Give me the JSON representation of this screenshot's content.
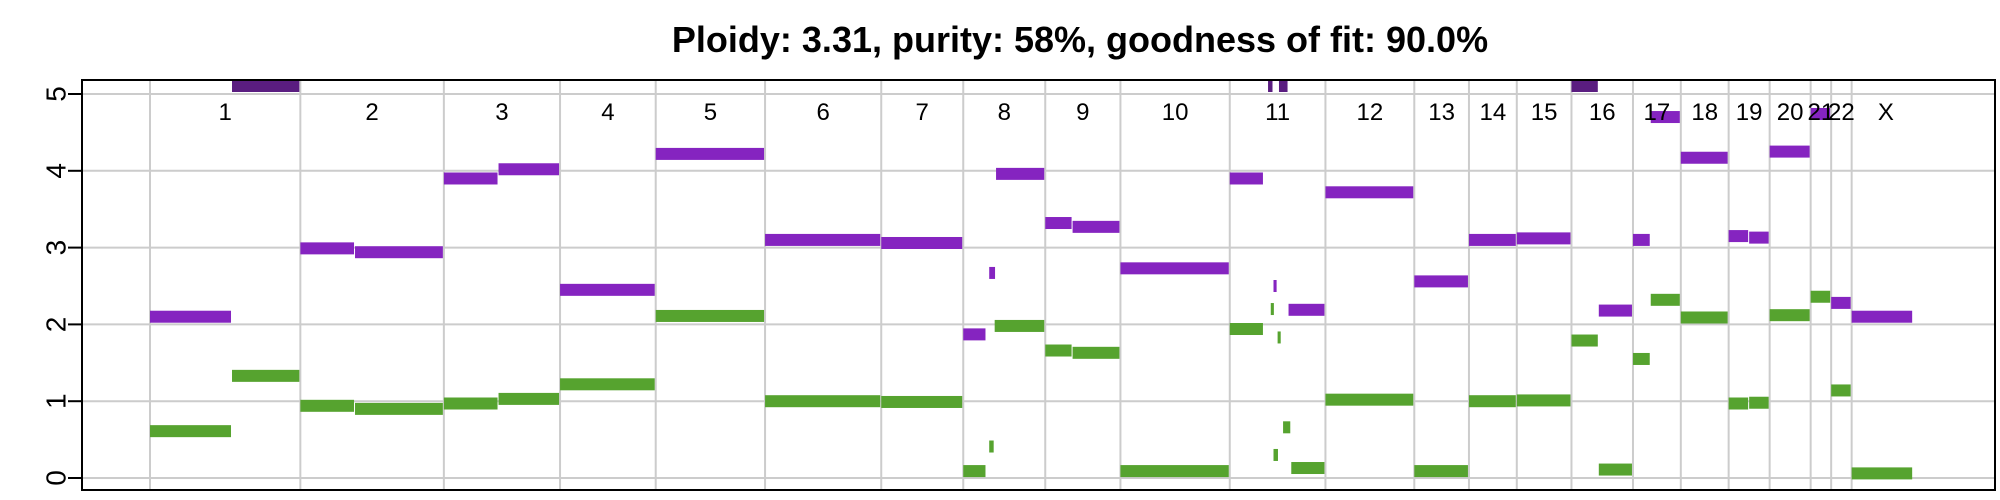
{
  "chart_data": {
    "type": "segment",
    "title": "Ploidy: 3.31, purity: 58%, goodness of fit: 90.0%",
    "xlabel": "",
    "ylabel": "",
    "ylim": [
      0,
      5
    ],
    "yticks": [
      0,
      1,
      2,
      3,
      4,
      5
    ],
    "grid": true,
    "colors": {
      "major": "#8524c0",
      "minor": "#56a32f",
      "clipped": "#5a1d80"
    },
    "chromosomes": [
      {
        "label": "1",
        "start": 0,
        "end": 11
      },
      {
        "label": "2",
        "start": 11,
        "end": 21.5
      },
      {
        "label": "3",
        "start": 21.5,
        "end": 30
      },
      {
        "label": "4",
        "start": 30,
        "end": 37
      },
      {
        "label": "5",
        "start": 37,
        "end": 45
      },
      {
        "label": "6",
        "start": 45,
        "end": 53.5
      },
      {
        "label": "7",
        "start": 53.5,
        "end": 59.5
      },
      {
        "label": "8",
        "start": 59.5,
        "end": 65.5
      },
      {
        "label": "9",
        "start": 65.5,
        "end": 71
      },
      {
        "label": "10",
        "start": 71,
        "end": 79
      },
      {
        "label": "11",
        "start": 79,
        "end": 86
      },
      {
        "label": "12",
        "start": 86,
        "end": 92.5
      },
      {
        "label": "13",
        "start": 92.5,
        "end": 96.5
      },
      {
        "label": "14",
        "start": 96.5,
        "end": 100
      },
      {
        "label": "15",
        "start": 100,
        "end": 104
      },
      {
        "label": "16",
        "start": 104,
        "end": 108.5
      },
      {
        "label": "17",
        "start": 108.5,
        "end": 112
      },
      {
        "label": "18",
        "start": 112,
        "end": 115.5
      },
      {
        "label": "19",
        "start": 115.5,
        "end": 118.5
      },
      {
        "label": "20",
        "start": 118.5,
        "end": 121.5
      },
      {
        "label": "21",
        "start": 121.5,
        "end": 123
      },
      {
        "label": "22",
        "start": 123,
        "end": 124.5
      },
      {
        "label": "X",
        "start": 124.5,
        "end": 129.5
      }
    ],
    "series": [
      {
        "name": "",
        "color": "#8524c0",
        "segments": [
          {
            "x0": 0,
            "x1": 6,
            "y": 2.1
          },
          {
            "x0": 6,
            "x1": 11,
            "y": 5.1
          },
          {
            "x0": 11,
            "x1": 15,
            "y": 2.99
          },
          {
            "x0": 15,
            "x1": 21.5,
            "y": 2.94
          },
          {
            "x0": 21.5,
            "x1": 25.5,
            "y": 3.9
          },
          {
            "x0": 25.5,
            "x1": 30,
            "y": 4.02
          },
          {
            "x0": 30,
            "x1": 37,
            "y": 2.45
          },
          {
            "x0": 37,
            "x1": 45,
            "y": 4.22
          },
          {
            "x0": 45,
            "x1": 53.5,
            "y": 3.1
          },
          {
            "x0": 53.5,
            "x1": 59.5,
            "y": 3.06
          },
          {
            "x0": 59.5,
            "x1": 61.2,
            "y": 1.87
          },
          {
            "x0": 61.4,
            "x1": 61.9,
            "y": 2.67
          },
          {
            "x0": 61.9,
            "x1": 65.5,
            "y": 3.96
          },
          {
            "x0": 65.5,
            "x1": 67.5,
            "y": 3.32
          },
          {
            "x0": 67.5,
            "x1": 71,
            "y": 3.27
          },
          {
            "x0": 71,
            "x1": 79,
            "y": 2.73
          },
          {
            "x0": 79,
            "x1": 81.5,
            "y": 3.9
          },
          {
            "x0": 81.8,
            "x1": 82.2,
            "y": 5.1
          },
          {
            "x0": 82.2,
            "x1": 82.5,
            "y": 2.5
          },
          {
            "x0": 82.6,
            "x1": 83.3,
            "y": 5.1
          },
          {
            "x0": 83.3,
            "x1": 86,
            "y": 2.19
          },
          {
            "x0": 86,
            "x1": 92.5,
            "y": 3.72
          },
          {
            "x0": 92.5,
            "x1": 96.5,
            "y": 2.56
          },
          {
            "x0": 96.5,
            "x1": 100,
            "y": 3.1
          },
          {
            "x0": 100,
            "x1": 104,
            "y": 3.12
          },
          {
            "x0": 104,
            "x1": 106,
            "y": 5.1
          },
          {
            "x0": 106,
            "x1": 108.5,
            "y": 2.18
          },
          {
            "x0": 108.5,
            "x1": 109.8,
            "y": 3.1
          },
          {
            "x0": 109.8,
            "x1": 112,
            "y": 4.7
          },
          {
            "x0": 112,
            "x1": 115.5,
            "y": 4.17
          },
          {
            "x0": 115.5,
            "x1": 117,
            "y": 3.15
          },
          {
            "x0": 117,
            "x1": 118.5,
            "y": 3.13
          },
          {
            "x0": 118.5,
            "x1": 121.5,
            "y": 4.25
          },
          {
            "x0": 121.5,
            "x1": 123,
            "y": 4.74
          },
          {
            "x0": 123,
            "x1": 124.5,
            "y": 2.28
          },
          {
            "x0": 124.5,
            "x1": 129,
            "y": 2.1
          }
        ]
      },
      {
        "name": "",
        "color": "#56a32f",
        "segments": [
          {
            "x0": 0,
            "x1": 6,
            "y": 0.61
          },
          {
            "x0": 6,
            "x1": 11,
            "y": 1.33
          },
          {
            "x0": 11,
            "x1": 15,
            "y": 0.94
          },
          {
            "x0": 15,
            "x1": 21.5,
            "y": 0.9
          },
          {
            "x0": 21.5,
            "x1": 25.5,
            "y": 0.97
          },
          {
            "x0": 25.5,
            "x1": 30,
            "y": 1.03
          },
          {
            "x0": 30,
            "x1": 37,
            "y": 1.22
          },
          {
            "x0": 37,
            "x1": 45,
            "y": 2.11
          },
          {
            "x0": 45,
            "x1": 53.5,
            "y": 1.0
          },
          {
            "x0": 53.5,
            "x1": 59.5,
            "y": 0.99
          },
          {
            "x0": 59.5,
            "x1": 61.2,
            "y": 0.09
          },
          {
            "x0": 61.4,
            "x1": 61.8,
            "y": 0.41
          },
          {
            "x0": 61.8,
            "x1": 65.5,
            "y": 1.98
          },
          {
            "x0": 65.5,
            "x1": 67.5,
            "y": 1.66
          },
          {
            "x0": 67.5,
            "x1": 71,
            "y": 1.63
          },
          {
            "x0": 71,
            "x1": 79,
            "y": 0.09
          },
          {
            "x0": 79,
            "x1": 81.5,
            "y": 1.94
          },
          {
            "x0": 82.0,
            "x1": 82.3,
            "y": 2.2
          },
          {
            "x0": 82.2,
            "x1": 82.6,
            "y": 0.3
          },
          {
            "x0": 82.5,
            "x1": 82.8,
            "y": 1.83
          },
          {
            "x0": 82.9,
            "x1": 83.5,
            "y": 0.66
          },
          {
            "x0": 83.5,
            "x1": 86,
            "y": 0.13
          },
          {
            "x0": 86,
            "x1": 92.5,
            "y": 1.02
          },
          {
            "x0": 92.5,
            "x1": 96.5,
            "y": 0.09
          },
          {
            "x0": 96.5,
            "x1": 100,
            "y": 1.0
          },
          {
            "x0": 100,
            "x1": 104,
            "y": 1.01
          },
          {
            "x0": 104,
            "x1": 106,
            "y": 1.79
          },
          {
            "x0": 106,
            "x1": 108.5,
            "y": 0.11
          },
          {
            "x0": 108.5,
            "x1": 109.8,
            "y": 1.55
          },
          {
            "x0": 109.8,
            "x1": 112,
            "y": 2.32
          },
          {
            "x0": 112,
            "x1": 115.5,
            "y": 2.09
          },
          {
            "x0": 115.5,
            "x1": 117,
            "y": 0.97
          },
          {
            "x0": 117,
            "x1": 118.5,
            "y": 0.98
          },
          {
            "x0": 118.5,
            "x1": 121.5,
            "y": 2.12
          },
          {
            "x0": 121.5,
            "x1": 123,
            "y": 2.36
          },
          {
            "x0": 123,
            "x1": 124.5,
            "y": 1.14
          },
          {
            "x0": 124.5,
            "x1": 129,
            "y": 0.06
          }
        ]
      }
    ]
  }
}
